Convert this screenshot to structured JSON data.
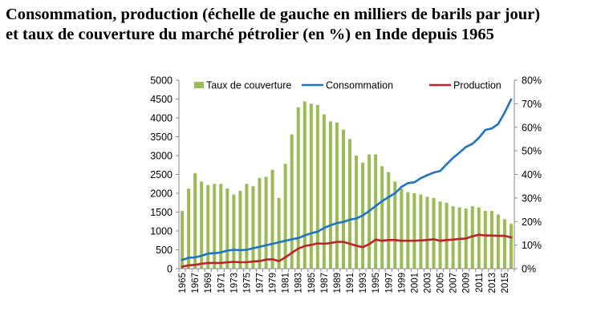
{
  "title": {
    "line1": "Consommation, production (échelle de gauche en milliers de barils par jour)",
    "line2": "et taux de couverture du marché pétrolier (en %) en Inde depuis 1965"
  },
  "chart_data": {
    "type": "bar+line",
    "x": [
      1965,
      1966,
      1967,
      1968,
      1969,
      1970,
      1971,
      1972,
      1973,
      1974,
      1975,
      1976,
      1977,
      1978,
      1979,
      1980,
      1981,
      1982,
      1983,
      1984,
      1985,
      1986,
      1987,
      1988,
      1989,
      1990,
      1991,
      1992,
      1993,
      1994,
      1995,
      1996,
      1997,
      1998,
      1999,
      2000,
      2001,
      2002,
      2003,
      2004,
      2005,
      2006,
      2007,
      2008,
      2009,
      2010,
      2011,
      2012,
      2013,
      2014,
      2015,
      2016
    ],
    "x_tick_labels": [
      "1965",
      "1967",
      "1969",
      "1971",
      "1973",
      "1975",
      "1977",
      "1979",
      "1981",
      "1983",
      "1985",
      "1987",
      "1989",
      "1991",
      "1993",
      "1995",
      "1997",
      "1999",
      "2001",
      "2003",
      "2005",
      "2007",
      "2009",
      "2011",
      "2013",
      "2015"
    ],
    "left_axis": {
      "ylim": [
        0,
        5000
      ],
      "ticks": [
        "0",
        "500",
        "1000",
        "1500",
        "2000",
        "2500",
        "3000",
        "3500",
        "4000",
        "4500",
        "5000"
      ]
    },
    "right_axis": {
      "ylim": [
        0,
        80
      ],
      "ticks": [
        "0%",
        "10%",
        "20%",
        "30%",
        "40%",
        "50%",
        "60%",
        "70%",
        "80%"
      ]
    },
    "legend_position": "top",
    "series": [
      {
        "name": "Taux de couverture",
        "type": "bar",
        "axis": "right",
        "color": "#9BBB59",
        "values": [
          24.5,
          34,
          40.5,
          37,
          35.5,
          36,
          36,
          34,
          31.5,
          33,
          36,
          35,
          38.5,
          39,
          42,
          30,
          44.5,
          57,
          68.5,
          71,
          70,
          69.5,
          65.5,
          62.5,
          62,
          59,
          55,
          48,
          45,
          48.5,
          48.5,
          43.5,
          41,
          37,
          34,
          32.5,
          32,
          31.5,
          30.5,
          30,
          28.5,
          28,
          26.5,
          26,
          25.5,
          26.5,
          26,
          24.5,
          24.5,
          23,
          21,
          19
        ]
      },
      {
        "name": "Consommation",
        "type": "line",
        "axis": "left",
        "color": "#1F72C4",
        "values": [
          230,
          290,
          300,
          340,
          400,
          410,
          430,
          480,
          500,
          490,
          500,
          540,
          580,
          620,
          660,
          700,
          740,
          780,
          810,
          880,
          940,
          980,
          1080,
          1150,
          1210,
          1240,
          1300,
          1330,
          1410,
          1530,
          1660,
          1790,
          1900,
          2000,
          2170,
          2270,
          2290,
          2400,
          2480,
          2550,
          2590,
          2770,
          2940,
          3080,
          3230,
          3310,
          3470,
          3680,
          3720,
          3840,
          4140,
          4490
        ]
      },
      {
        "name": "Production",
        "type": "line",
        "axis": "left",
        "color": "#C0202A",
        "values": [
          50,
          90,
          100,
          130,
          150,
          150,
          150,
          170,
          180,
          170,
          170,
          190,
          200,
          240,
          250,
          200,
          300,
          420,
          530,
          600,
          630,
          670,
          660,
          680,
          710,
          710,
          660,
          610,
          570,
          650,
          770,
          740,
          760,
          760,
          740,
          740,
          740,
          750,
          760,
          780,
          740,
          760,
          770,
          790,
          800,
          860,
          900,
          880,
          880,
          870,
          870,
          830
        ]
      }
    ]
  }
}
